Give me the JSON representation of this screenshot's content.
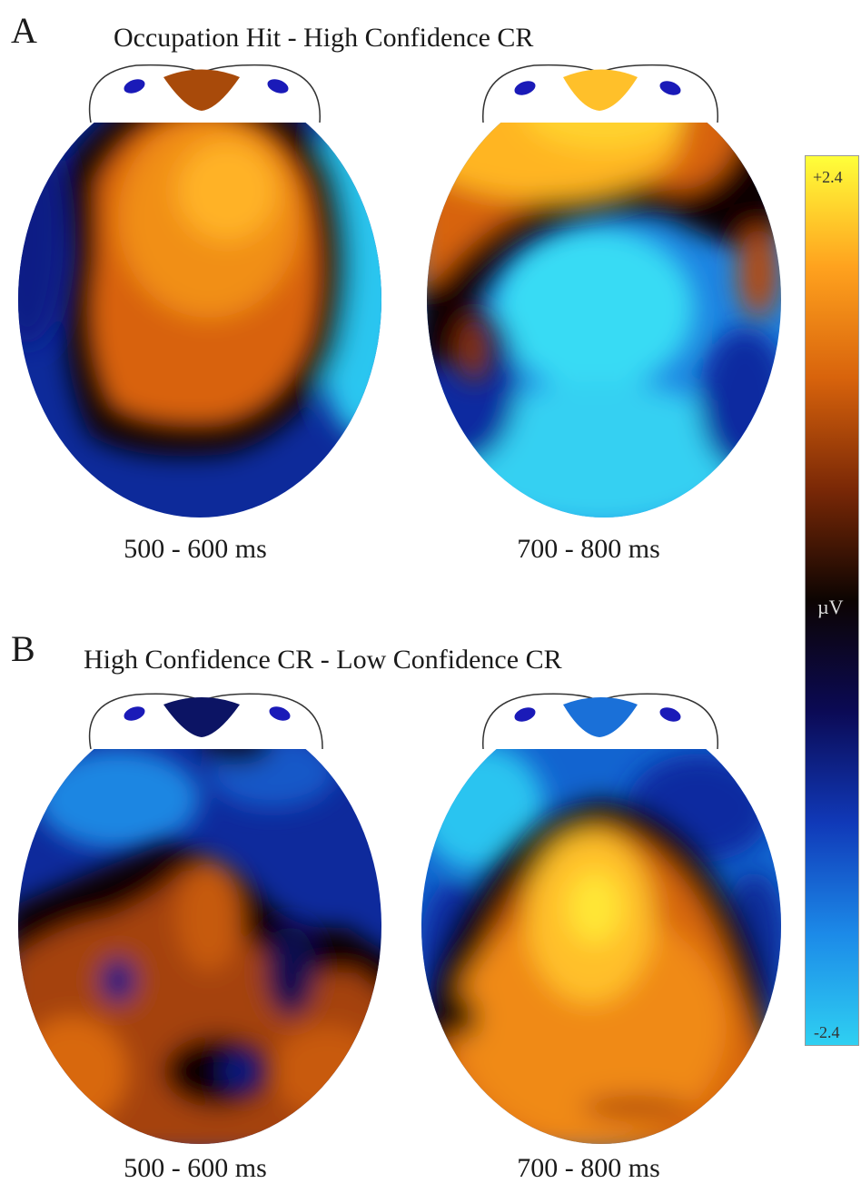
{
  "panels": [
    {
      "letter": "A",
      "title": "Occupation Hit - High Confidence CR",
      "maps": [
        {
          "time_label": "500 - 600 ms",
          "pattern": "central-positive"
        },
        {
          "time_label": "700 - 800 ms",
          "pattern": "frontal-positive"
        }
      ]
    },
    {
      "letter": "B",
      "title": "High Confidence CR - Low Confidence CR",
      "maps": [
        {
          "time_label": "500 - 600 ms",
          "pattern": "posterior-positive-mixed"
        },
        {
          "time_label": "700 - 800 ms",
          "pattern": "central-posterior-positive"
        }
      ]
    }
  ],
  "colorbar": {
    "max_label": "+2.4",
    "min_label": "-2.4",
    "unit": "µV",
    "colors": [
      "#ffff3a",
      "#ffa21e",
      "#d8630c",
      "#7a2806",
      "#0c0402",
      "#0b0a55",
      "#1039b8",
      "#1c8ae8",
      "#2fd0f2"
    ]
  }
}
